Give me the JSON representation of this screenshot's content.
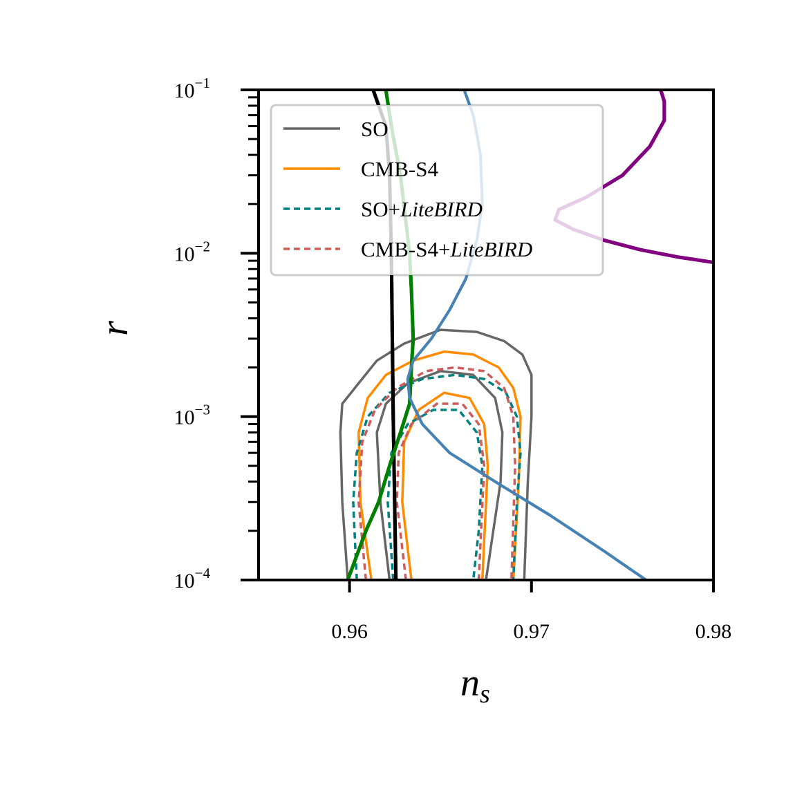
{
  "chart_data": {
    "type": "line",
    "title": "",
    "xlabel": {
      "main": "n",
      "sub": "s"
    },
    "ylabel": "r",
    "xlim": [
      0.955,
      0.98
    ],
    "ylim": [
      0.0001,
      0.1
    ],
    "yscale": "log",
    "xticks": [
      0.96,
      0.97,
      0.98
    ],
    "xtick_labels": [
      "0.96",
      "0.97",
      "0.98"
    ],
    "yticks": [
      0.0001,
      0.001,
      0.01,
      0.1
    ],
    "ytick_labels": [
      {
        "base": "10",
        "exp": "−4"
      },
      {
        "base": "10",
        "exp": "−3"
      },
      {
        "base": "10",
        "exp": "−2"
      },
      {
        "base": "10",
        "exp": "−1"
      }
    ],
    "legend": {
      "location": "upper-left",
      "entries": [
        {
          "label": "SO",
          "italic_suffix": "",
          "color": "#666666",
          "style": "solid"
        },
        {
          "label": "CMB-S4",
          "italic_suffix": "",
          "color": "#ff8c00",
          "style": "solid"
        },
        {
          "label": "SO+",
          "italic_suffix": "LiteBIRD",
          "color": "#008080",
          "style": "dashed"
        },
        {
          "label": "CMB-S4+",
          "italic_suffix": "LiteBIRD",
          "color": "#cd5c5c",
          "style": "dashed"
        }
      ]
    },
    "contours": [
      {
        "name": "SO 95%",
        "color": "#666666",
        "style": "solid",
        "points": [
          [
            0.9599,
            0.0001
          ],
          [
            0.9596,
            0.0003
          ],
          [
            0.9595,
            0.0008
          ],
          [
            0.9596,
            0.0012
          ],
          [
            0.9605,
            0.0016
          ],
          [
            0.9615,
            0.0022
          ],
          [
            0.963,
            0.0028
          ],
          [
            0.965,
            0.0034
          ],
          [
            0.967,
            0.0033
          ],
          [
            0.9685,
            0.0029
          ],
          [
            0.9695,
            0.0024
          ],
          [
            0.97,
            0.0018
          ],
          [
            0.97,
            0.001
          ],
          [
            0.9698,
            0.0004
          ],
          [
            0.9696,
            0.0001
          ]
        ]
      },
      {
        "name": "SO 68%",
        "color": "#666666",
        "style": "solid",
        "points": [
          [
            0.9622,
            0.0001
          ],
          [
            0.9617,
            0.0003
          ],
          [
            0.9615,
            0.0008
          ],
          [
            0.962,
            0.0012
          ],
          [
            0.9632,
            0.0016
          ],
          [
            0.965,
            0.0019
          ],
          [
            0.9668,
            0.0018
          ],
          [
            0.968,
            0.0013
          ],
          [
            0.9684,
            0.0008
          ],
          [
            0.9683,
            0.0004
          ],
          [
            0.9675,
            0.0001
          ]
        ]
      },
      {
        "name": "CMB-S4 95%",
        "color": "#ff8c00",
        "style": "solid",
        "points": [
          [
            0.9612,
            0.0001
          ],
          [
            0.9606,
            0.0003
          ],
          [
            0.9605,
            0.0008
          ],
          [
            0.961,
            0.0013
          ],
          [
            0.962,
            0.0018
          ],
          [
            0.9635,
            0.0022
          ],
          [
            0.9652,
            0.0025
          ],
          [
            0.9668,
            0.0024
          ],
          [
            0.9682,
            0.002
          ],
          [
            0.969,
            0.0015
          ],
          [
            0.9694,
            0.001
          ],
          [
            0.9693,
            0.0004
          ],
          [
            0.969,
            0.0001
          ]
        ]
      },
      {
        "name": "CMB-S4 68%",
        "color": "#ff8c00",
        "style": "solid",
        "points": [
          [
            0.9634,
            0.0001
          ],
          [
            0.9629,
            0.0003
          ],
          [
            0.963,
            0.0007
          ],
          [
            0.9638,
            0.0011
          ],
          [
            0.9652,
            0.0014
          ],
          [
            0.9666,
            0.0013
          ],
          [
            0.9674,
            0.0009
          ],
          [
            0.9676,
            0.0005
          ],
          [
            0.9673,
            0.0001
          ]
        ]
      },
      {
        "name": "SO+LiteBIRD 95%",
        "color": "#008080",
        "style": "dashed",
        "points": [
          [
            0.9604,
            0.0001
          ],
          [
            0.9602,
            0.0003
          ],
          [
            0.9604,
            0.0006
          ],
          [
            0.961,
            0.001
          ],
          [
            0.9622,
            0.0014
          ],
          [
            0.964,
            0.0017
          ],
          [
            0.9658,
            0.0018
          ],
          [
            0.9674,
            0.0017
          ],
          [
            0.9686,
            0.0014
          ],
          [
            0.9692,
            0.001
          ],
          [
            0.9694,
            0.0006
          ],
          [
            0.9692,
            0.0003
          ],
          [
            0.969,
            0.0001
          ]
        ]
      },
      {
        "name": "SO+LiteBIRD 68%",
        "color": "#008080",
        "style": "dashed",
        "points": [
          [
            0.9624,
            0.0001
          ],
          [
            0.9621,
            0.0003
          ],
          [
            0.9623,
            0.0006
          ],
          [
            0.9632,
            0.0009
          ],
          [
            0.9646,
            0.0011
          ],
          [
            0.966,
            0.0011
          ],
          [
            0.967,
            0.0008
          ],
          [
            0.9673,
            0.0005
          ],
          [
            0.9671,
            0.0002
          ],
          [
            0.9668,
            0.0001
          ]
        ]
      },
      {
        "name": "CMB-S4+LiteBIRD 95%",
        "color": "#cd5c5c",
        "style": "dashed",
        "points": [
          [
            0.9609,
            0.0001
          ],
          [
            0.9605,
            0.0003
          ],
          [
            0.9607,
            0.0007
          ],
          [
            0.9614,
            0.0011
          ],
          [
            0.9626,
            0.0015
          ],
          [
            0.9642,
            0.0019
          ],
          [
            0.9658,
            0.002
          ],
          [
            0.9674,
            0.0019
          ],
          [
            0.9685,
            0.0015
          ],
          [
            0.969,
            0.001
          ],
          [
            0.9691,
            0.0005
          ],
          [
            0.9689,
            0.0001
          ]
        ]
      },
      {
        "name": "CMB-S4+LiteBIRD 68%",
        "color": "#cd5c5c",
        "style": "dashed",
        "points": [
          [
            0.9631,
            0.0001
          ],
          [
            0.9626,
            0.0003
          ],
          [
            0.9627,
            0.0006
          ],
          [
            0.9634,
            0.0009
          ],
          [
            0.9648,
            0.0012
          ],
          [
            0.9662,
            0.0012
          ],
          [
            0.9671,
            0.0009
          ],
          [
            0.9674,
            0.0005
          ],
          [
            0.9671,
            0.0001
          ]
        ]
      }
    ],
    "model_curves": [
      {
        "name": "black",
        "color": "#000000",
        "width": 5,
        "points": [
          [
            0.96255,
            0.0001
          ],
          [
            0.9624,
            0.001
          ],
          [
            0.9623,
            0.01
          ],
          [
            0.9622,
            0.03
          ],
          [
            0.962,
            0.06
          ],
          [
            0.9613,
            0.1
          ]
        ]
      },
      {
        "name": "green",
        "color": "#008000",
        "width": 5,
        "points": [
          [
            0.9599,
            0.0001
          ],
          [
            0.9609,
            0.0002
          ],
          [
            0.9616,
            0.0003
          ],
          [
            0.9622,
            0.0005
          ],
          [
            0.9628,
            0.0008
          ],
          [
            0.9633,
            0.0012
          ],
          [
            0.9634,
            0.002
          ],
          [
            0.9635,
            0.003
          ],
          [
            0.9634,
            0.006
          ],
          [
            0.9633,
            0.01
          ],
          [
            0.9628,
            0.03
          ],
          [
            0.9623,
            0.06
          ],
          [
            0.962,
            0.1
          ]
        ]
      },
      {
        "name": "blue",
        "color": "#4682b4",
        "width": 4,
        "points": [
          [
            0.9763,
            0.0001
          ],
          [
            0.974,
            0.00015
          ],
          [
            0.971,
            0.00025
          ],
          [
            0.968,
            0.0004
          ],
          [
            0.9655,
            0.0006
          ],
          [
            0.964,
            0.0009
          ],
          [
            0.9633,
            0.0013
          ],
          [
            0.9632,
            0.0017
          ],
          [
            0.9635,
            0.0022
          ],
          [
            0.9645,
            0.003
          ],
          [
            0.9655,
            0.0045
          ],
          [
            0.9664,
            0.007
          ],
          [
            0.967,
            0.012
          ],
          [
            0.9673,
            0.02
          ],
          [
            0.9672,
            0.04
          ],
          [
            0.9668,
            0.07
          ],
          [
            0.9663,
            0.1
          ]
        ]
      },
      {
        "name": "purple",
        "color": "#800080",
        "width": 5,
        "points": [
          [
            0.98,
            0.0088
          ],
          [
            0.978,
            0.0095
          ],
          [
            0.976,
            0.0105
          ],
          [
            0.974,
            0.012
          ],
          [
            0.9723,
            0.014
          ],
          [
            0.9713,
            0.016
          ],
          [
            0.9715,
            0.0185
          ],
          [
            0.973,
            0.022
          ],
          [
            0.975,
            0.03
          ],
          [
            0.9765,
            0.045
          ],
          [
            0.9773,
            0.065
          ],
          [
            0.9773,
            0.085
          ],
          [
            0.9771,
            0.1
          ]
        ]
      }
    ]
  }
}
